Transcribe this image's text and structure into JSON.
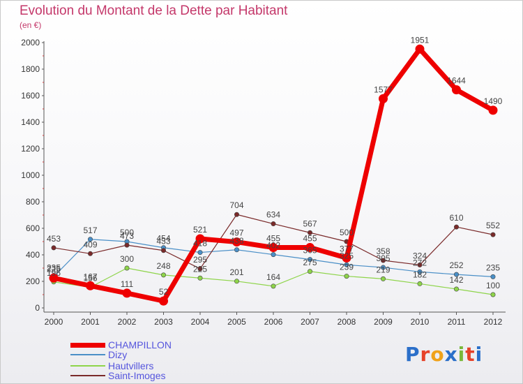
{
  "header": {
    "title": "Evolution du Montant de la Dette par Habitant",
    "subtitle": "(en €)"
  },
  "logo": {
    "text": "Proxiti",
    "colors": [
      "#2b6fc9",
      "#e6422a",
      "#f0a21a",
      "#2b6fc9",
      "#7ab83a",
      "#e6422a",
      "#2b6fc9"
    ]
  },
  "chart_data": {
    "type": "line",
    "title": "Evolution du Montant de la Dette par Habitant",
    "subtitle": "(en €)",
    "xlabel": "",
    "ylabel": "",
    "x": [
      "2000",
      "2001",
      "2002",
      "2003",
      "2004",
      "2005",
      "2006",
      "2007",
      "2008",
      "2009",
      "2010",
      "2011",
      "2012"
    ],
    "ylim": [
      0,
      2000
    ],
    "yticks": [
      0,
      200,
      400,
      600,
      800,
      1000,
      1200,
      1400,
      1600,
      1800,
      2000
    ],
    "grid": false,
    "legend": "bottom-left",
    "series": [
      {
        "name": "CHAMPILLON",
        "color": "#ee0000",
        "values": [
          225,
          167,
          111,
          52,
          521,
          497,
          455,
          455,
          377,
          1577,
          1951,
          1644,
          1490
        ]
      },
      {
        "name": "Dizy",
        "color": "#4a8fc7",
        "values": [
          235,
          517,
          500,
          454,
          418,
          438,
          402,
          365,
          325,
          305,
          272,
          252,
          235
        ]
      },
      {
        "name": "Hautvillers",
        "color": "#8ed44a",
        "values": [
          196,
          156,
          300,
          248,
          225,
          201,
          164,
          275,
          239,
          219,
          182,
          142,
          100
        ]
      },
      {
        "name": "Saint-Imoges",
        "color": "#7a2a2a",
        "values": [
          453,
          409,
          473,
          433,
          295,
          704,
          634,
          567,
          500,
          358,
          324,
          610,
          552
        ]
      }
    ]
  }
}
